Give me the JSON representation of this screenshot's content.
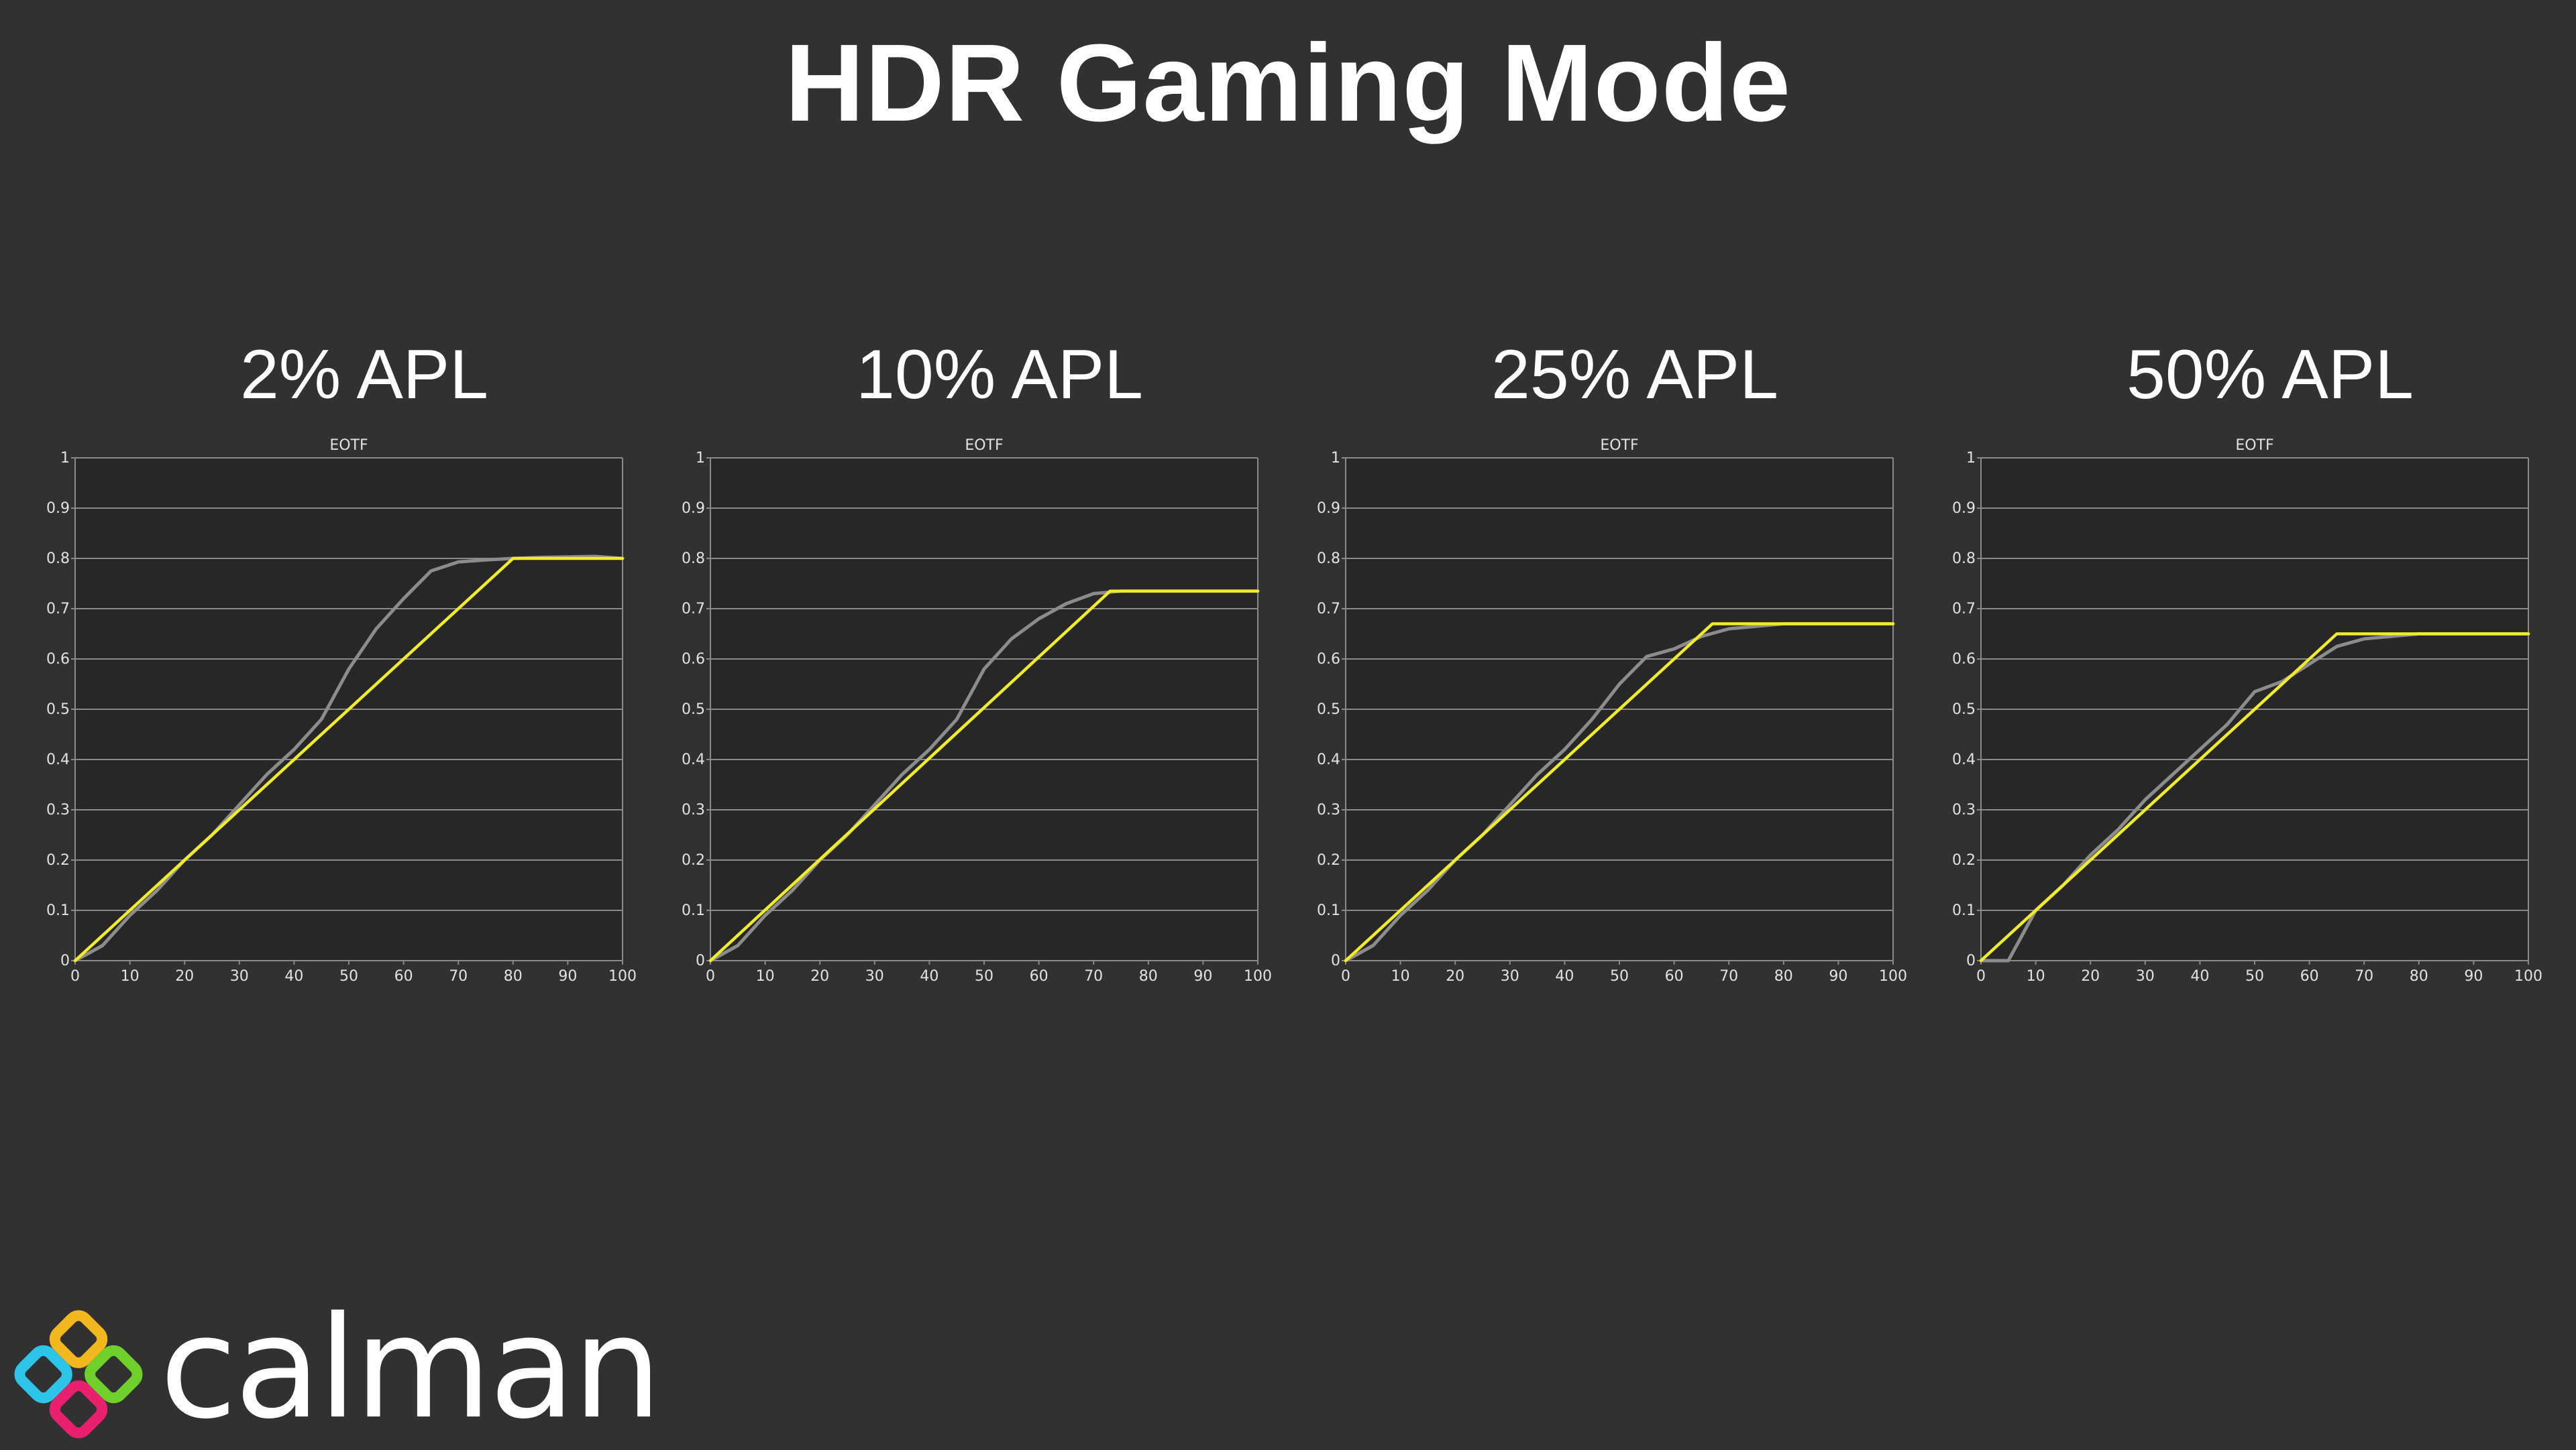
{
  "page": {
    "title": "HDR Gaming Mode"
  },
  "logo": {
    "text": "calman"
  },
  "colors": {
    "background": "#313131",
    "plot_background": "#272727",
    "grid": "#8a8a8a",
    "target_series": "#f0ec2c",
    "measured_series": "#8c8c8c",
    "logo_tiles": [
      "#f2b81d",
      "#2ec4e8",
      "#6fcf2b",
      "#e8206f"
    ]
  },
  "chart_data": [
    {
      "heading": "2% APL",
      "type": "line",
      "title": "EOTF",
      "xlim": [
        0,
        100
      ],
      "ylim": [
        0,
        1
      ],
      "xticks": [
        0,
        10,
        20,
        30,
        40,
        50,
        60,
        70,
        80,
        90,
        100
      ],
      "yticks": [
        0,
        0.1,
        0.2,
        0.3,
        0.4,
        0.5,
        0.6,
        0.7,
        0.8,
        0.9,
        1
      ],
      "ytick_labels": [
        "0",
        "0.1",
        "0.2",
        "0.3",
        "0.4",
        "0.5",
        "0.6",
        "0.7",
        "0.8",
        "0.9",
        "1"
      ],
      "grid": true,
      "series": [
        {
          "color": "#8c8c8c",
          "x": [
            0,
            5,
            10,
            15,
            20,
            25,
            30,
            35,
            40,
            45,
            50,
            55,
            60,
            65,
            70,
            75,
            80,
            85,
            90,
            95,
            100
          ],
          "y": [
            0,
            0.03,
            0.09,
            0.14,
            0.2,
            0.25,
            0.31,
            0.37,
            0.42,
            0.48,
            0.58,
            0.66,
            0.72,
            0.775,
            0.793,
            0.797,
            0.8,
            0.802,
            0.803,
            0.804,
            0.8
          ]
        },
        {
          "color": "#f0ec2c",
          "x": [
            0,
            80,
            100
          ],
          "y": [
            0,
            0.8,
            0.8
          ]
        }
      ]
    },
    {
      "heading": "10% APL",
      "type": "line",
      "title": "EOTF",
      "xlim": [
        0,
        100
      ],
      "ylim": [
        0,
        1
      ],
      "xticks": [
        0,
        10,
        20,
        30,
        40,
        50,
        60,
        70,
        80,
        90,
        100
      ],
      "yticks": [
        0,
        0.1,
        0.2,
        0.3,
        0.4,
        0.5,
        0.6,
        0.7,
        0.8,
        0.9,
        1
      ],
      "ytick_labels": [
        "0",
        "0.1",
        "0.2",
        "0.3",
        "0.4",
        "0.5",
        "0.6",
        "0.7",
        "0.8",
        "0.9",
        "1"
      ],
      "grid": true,
      "series": [
        {
          "color": "#8c8c8c",
          "x": [
            0,
            5,
            10,
            15,
            20,
            25,
            30,
            35,
            40,
            45,
            50,
            55,
            60,
            65,
            70,
            75,
            80,
            85,
            90,
            95,
            100
          ],
          "y": [
            0,
            0.03,
            0.09,
            0.14,
            0.2,
            0.25,
            0.31,
            0.37,
            0.42,
            0.48,
            0.58,
            0.64,
            0.68,
            0.71,
            0.73,
            0.735,
            0.735,
            0.735,
            0.735,
            0.735,
            0.735
          ]
        },
        {
          "color": "#f0ec2c",
          "x": [
            0,
            73,
            100
          ],
          "y": [
            0,
            0.735,
            0.735
          ]
        }
      ]
    },
    {
      "heading": "25% APL",
      "type": "line",
      "title": "EOTF",
      "xlim": [
        0,
        100
      ],
      "ylim": [
        0,
        1
      ],
      "xticks": [
        0,
        10,
        20,
        30,
        40,
        50,
        60,
        70,
        80,
        90,
        100
      ],
      "yticks": [
        0,
        0.1,
        0.2,
        0.3,
        0.4,
        0.5,
        0.6,
        0.7,
        0.8,
        0.9,
        1
      ],
      "ytick_labels": [
        "0",
        "0.1",
        "0.2",
        "0.3",
        "0.4",
        "0.5",
        "0.6",
        "0.7",
        "0.8",
        "0.9",
        "1"
      ],
      "grid": true,
      "series": [
        {
          "color": "#8c8c8c",
          "x": [
            0,
            5,
            10,
            15,
            20,
            25,
            30,
            35,
            40,
            45,
            50,
            55,
            60,
            65,
            70,
            75,
            80,
            85,
            90,
            95,
            100
          ],
          "y": [
            0,
            0.03,
            0.09,
            0.14,
            0.2,
            0.25,
            0.31,
            0.37,
            0.42,
            0.48,
            0.55,
            0.605,
            0.62,
            0.645,
            0.66,
            0.665,
            0.67,
            0.67,
            0.67,
            0.67,
            0.67
          ]
        },
        {
          "color": "#f0ec2c",
          "x": [
            0,
            67,
            100
          ],
          "y": [
            0,
            0.67,
            0.67
          ]
        }
      ]
    },
    {
      "heading": "50% APL",
      "type": "line",
      "title": "EOTF",
      "xlim": [
        0,
        100
      ],
      "ylim": [
        0,
        1
      ],
      "xticks": [
        0,
        10,
        20,
        30,
        40,
        50,
        60,
        70,
        80,
        90,
        100
      ],
      "yticks": [
        0,
        0.1,
        0.2,
        0.3,
        0.4,
        0.5,
        0.6,
        0.7,
        0.8,
        0.9,
        1
      ],
      "ytick_labels": [
        "0",
        "0.1",
        "0.2",
        "0.3",
        "0.4",
        "0.5",
        "0.6",
        "0.7",
        "0.8",
        "0.9",
        "1"
      ],
      "grid": true,
      "series": [
        {
          "color": "#8c8c8c",
          "x": [
            0,
            5,
            10,
            15,
            20,
            25,
            30,
            35,
            40,
            45,
            50,
            55,
            60,
            65,
            70,
            75,
            80,
            85,
            90,
            95,
            100
          ],
          "y": [
            0,
            0,
            0.1,
            0.15,
            0.21,
            0.26,
            0.32,
            0.37,
            0.42,
            0.47,
            0.535,
            0.555,
            0.59,
            0.625,
            0.64,
            0.645,
            0.65,
            0.65,
            0.65,
            0.65,
            0.65
          ]
        },
        {
          "color": "#f0ec2c",
          "x": [
            0,
            65,
            100
          ],
          "y": [
            0,
            0.65,
            0.65
          ]
        }
      ]
    }
  ]
}
